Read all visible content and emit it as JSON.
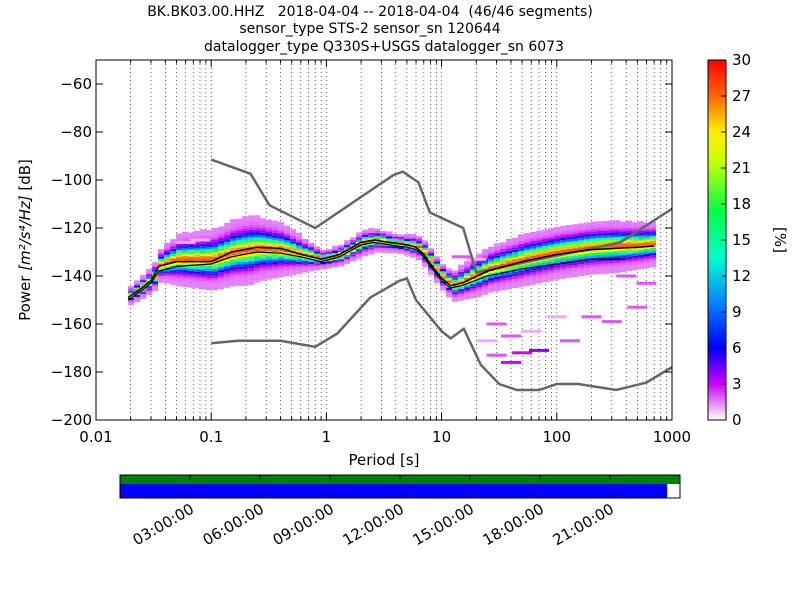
{
  "chart_data": {
    "type": "heatmap",
    "title_lines": [
      "BK.BK03.00.HHZ   2018-04-04 -- 2018-04-04  (46/46 segments)",
      "sensor_type STS-2 sensor_sn 120644",
      "datalogger_type Q330S+USGS datalogger_sn 6073"
    ],
    "xlabel": "Period [s]",
    "ylabel_prefix": "Power ",
    "ylabel_units": "[m²/s⁴/Hz]",
    "ylabel_suffix": " [dB]",
    "x_scale": "log",
    "xlim": [
      0.01,
      1000
    ],
    "ylim": [
      -200,
      -50
    ],
    "x_ticks": [
      {
        "v": 0.01,
        "label": "0.01"
      },
      {
        "v": 0.1,
        "label": "0.1"
      },
      {
        "v": 1,
        "label": "1"
      },
      {
        "v": 10,
        "label": "10"
      },
      {
        "v": 100,
        "label": "100"
      },
      {
        "v": 1000,
        "label": "1000"
      }
    ],
    "y_ticks": [
      {
        "v": -60,
        "label": "−60"
      },
      {
        "v": -80,
        "label": "−80"
      },
      {
        "v": -100,
        "label": "−100"
      },
      {
        "v": -120,
        "label": "−120"
      },
      {
        "v": -140,
        "label": "−140"
      },
      {
        "v": -160,
        "label": "−160"
      },
      {
        "v": -180,
        "label": "−180"
      },
      {
        "v": -200,
        "label": "−200"
      }
    ],
    "colorbar": {
      "label": "[%]",
      "min": 0,
      "max": 30,
      "ticks": [
        {
          "v": 0,
          "label": "0"
        },
        {
          "v": 3,
          "label": "3"
        },
        {
          "v": 6,
          "label": "6"
        },
        {
          "v": 9,
          "label": "9"
        },
        {
          "v": 12,
          "label": "12"
        },
        {
          "v": 15,
          "label": "15"
        },
        {
          "v": 18,
          "label": "18"
        },
        {
          "v": 21,
          "label": "21"
        },
        {
          "v": 24,
          "label": "24"
        },
        {
          "v": 27,
          "label": "27"
        },
        {
          "v": 30,
          "label": "30"
        }
      ]
    },
    "nhnm": [
      [
        0.1,
        -168
      ],
      [
        0.17,
        -167
      ],
      [
        0.4,
        -167
      ],
      [
        0.8,
        -169.5
      ],
      [
        1.24,
        -164
      ],
      [
        2.4,
        -149
      ],
      [
        4.3,
        -142
      ],
      [
        5,
        -141
      ],
      [
        6,
        -150
      ],
      [
        10,
        -163
      ],
      [
        12,
        -166
      ],
      [
        15.6,
        -162
      ],
      [
        21.9,
        -177
      ],
      [
        31.6,
        -185
      ],
      [
        45,
        -187.5
      ],
      [
        70,
        -187.5
      ],
      [
        100,
        -185
      ],
      [
        154,
        -185
      ],
      [
        328,
        -187.5
      ],
      [
        600,
        -184.4
      ],
      [
        1000,
        -178
      ]
    ],
    "nlnm": [
      [
        0.1,
        -91.5
      ],
      [
        0.22,
        -97.4
      ],
      [
        0.32,
        -110.5
      ],
      [
        0.8,
        -120
      ],
      [
        3.8,
        -98
      ],
      [
        4.6,
        -96.5
      ],
      [
        6.3,
        -101
      ],
      [
        7.9,
        -113.5
      ],
      [
        15.4,
        -120
      ],
      [
        20,
        -138.5
      ],
      [
        354.8,
        -126
      ],
      [
        1000,
        -112
      ]
    ],
    "mode_line": [
      [
        0.019,
        -149
      ],
      [
        0.025,
        -145
      ],
      [
        0.03,
        -142
      ],
      [
        0.035,
        -136
      ],
      [
        0.05,
        -134
      ],
      [
        0.1,
        -134
      ],
      [
        0.15,
        -130
      ],
      [
        0.25,
        -128
      ],
      [
        0.4,
        -128.5
      ],
      [
        0.6,
        -131
      ],
      [
        0.9,
        -133
      ],
      [
        1.3,
        -131
      ],
      [
        2.0,
        -126
      ],
      [
        2.6,
        -125
      ],
      [
        3.5,
        -126
      ],
      [
        5,
        -127
      ],
      [
        6,
        -128
      ],
      [
        7,
        -131
      ],
      [
        8,
        -135
      ],
      [
        10,
        -141
      ],
      [
        12,
        -144
      ],
      [
        15,
        -143
      ],
      [
        25,
        -138
      ],
      [
        50,
        -134
      ],
      [
        100,
        -131
      ],
      [
        200,
        -129
      ],
      [
        500,
        -128
      ],
      [
        700,
        -127.5
      ]
    ],
    "mean_line": [
      [
        0.019,
        -150
      ],
      [
        0.025,
        -146
      ],
      [
        0.03,
        -143
      ],
      [
        0.035,
        -138
      ],
      [
        0.05,
        -136
      ],
      [
        0.1,
        -135
      ],
      [
        0.15,
        -132
      ],
      [
        0.25,
        -130
      ],
      [
        0.4,
        -130.5
      ],
      [
        0.6,
        -132
      ],
      [
        0.9,
        -134
      ],
      [
        1.3,
        -132
      ],
      [
        2.0,
        -127
      ],
      [
        2.6,
        -126
      ],
      [
        3.5,
        -127
      ],
      [
        5,
        -128
      ],
      [
        6,
        -129
      ],
      [
        7,
        -132
      ],
      [
        8,
        -136
      ],
      [
        10,
        -142
      ],
      [
        12,
        -145
      ],
      [
        15,
        -144
      ],
      [
        25,
        -140
      ],
      [
        50,
        -137
      ],
      [
        100,
        -135
      ],
      [
        200,
        -133
      ],
      [
        400,
        -133
      ]
    ],
    "pdf_ridge": [
      [
        0.019,
        -148
      ],
      [
        0.025,
        -144
      ],
      [
        0.03,
        -141
      ],
      [
        0.035,
        -135
      ],
      [
        0.05,
        -133
      ],
      [
        0.1,
        -133
      ],
      [
        0.15,
        -130
      ],
      [
        0.25,
        -128.5
      ],
      [
        0.4,
        -129
      ],
      [
        0.6,
        -131
      ],
      [
        0.9,
        -133
      ],
      [
        1.3,
        -131
      ],
      [
        2.0,
        -126
      ],
      [
        2.6,
        -125
      ],
      [
        3.5,
        -126
      ],
      [
        5,
        -127
      ],
      [
        6,
        -128
      ],
      [
        7,
        -131
      ],
      [
        8,
        -135
      ],
      [
        10,
        -141
      ],
      [
        12,
        -144
      ],
      [
        15,
        -142
      ],
      [
        25,
        -137
      ],
      [
        50,
        -133
      ],
      [
        100,
        -130
      ],
      [
        200,
        -128
      ],
      [
        500,
        -127
      ],
      [
        700,
        -126.5
      ]
    ],
    "pdf_spread": [
      [
        0.019,
        2
      ],
      [
        0.03,
        3
      ],
      [
        0.05,
        6
      ],
      [
        0.1,
        7
      ],
      [
        0.2,
        8
      ],
      [
        0.4,
        6
      ],
      [
        0.9,
        2
      ],
      [
        2,
        3
      ],
      [
        4,
        2
      ],
      [
        7,
        3
      ],
      [
        10,
        3
      ],
      [
        20,
        5
      ],
      [
        50,
        6
      ],
      [
        100,
        6
      ],
      [
        300,
        6
      ],
      [
        700,
        5
      ]
    ],
    "outliers": [
      {
        "x": 30,
        "y": -160,
        "percent": 2
      },
      {
        "x": 40,
        "y": -165,
        "percent": 2
      },
      {
        "x": 60,
        "y": -163,
        "percent": 1
      },
      {
        "x": 100,
        "y": -157,
        "percent": 1
      },
      {
        "x": 200,
        "y": -157,
        "percent": 2
      },
      {
        "x": 300,
        "y": -159,
        "percent": 2
      },
      {
        "x": 500,
        "y": -153,
        "percent": 2
      },
      {
        "x": 30,
        "y": -173,
        "percent": 2
      },
      {
        "x": 50,
        "y": -172,
        "percent": 3
      },
      {
        "x": 70,
        "y": -171,
        "percent": 4
      },
      {
        "x": 130,
        "y": -167,
        "percent": 2
      },
      {
        "x": 400,
        "y": -140,
        "percent": 2
      },
      {
        "x": 600,
        "y": -143,
        "percent": 2
      },
      {
        "x": 25,
        "y": -167,
        "percent": 1
      },
      {
        "x": 40,
        "y": -176,
        "percent": 3
      },
      {
        "x": 20,
        "y": -133,
        "percent": 1
      },
      {
        "x": 15,
        "y": -132,
        "percent": 2
      },
      {
        "x": 0.08,
        "y": -125,
        "percent": 1
      },
      {
        "x": 0.06,
        "y": -126,
        "percent": 1
      }
    ],
    "timeline": {
      "tick_labels": [
        "03:00:00",
        "06:00:00",
        "09:00:00",
        "12:00:00",
        "15:00:00",
        "18:00:00",
        "21:00:00"
      ],
      "coverage_fraction": 0.977,
      "data_color": "#0000ff",
      "segments_color": "#008000"
    },
    "colors": {
      "nm_lines": "#666666",
      "mode": "#000000",
      "mean": "#000000"
    }
  }
}
